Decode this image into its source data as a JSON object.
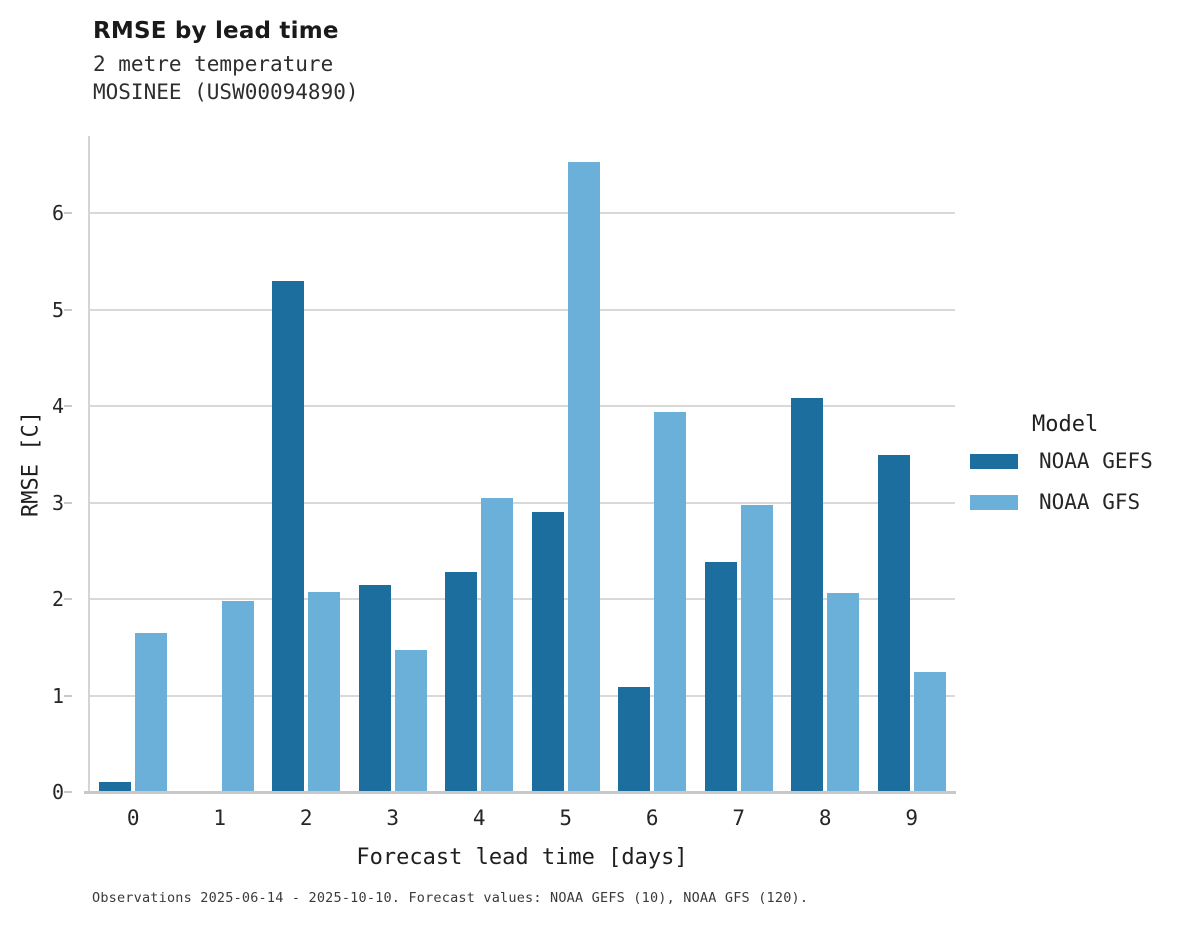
{
  "header": {
    "title": "RMSE by lead time",
    "subtitle_line1": "2 metre temperature",
    "subtitle_line2": "MOSINEE (USW00094890)"
  },
  "axes": {
    "x_title": "Forecast lead time [days]",
    "y_title": "RMSE [C]"
  },
  "legend": {
    "title": "Model",
    "entries": [
      {
        "label": "NOAA GEFS",
        "color": "#1c6e9e"
      },
      {
        "label": "NOAA GFS",
        "color": "#6ab0d8"
      }
    ]
  },
  "footer": {
    "note": "Observations 2025-06-14 - 2025-10-10. Forecast values: NOAA GEFS (10), NOAA GFS (120)."
  },
  "colors": {
    "gefs_blue": "#1c6e9e",
    "gfs_blue": "#6ab0d8",
    "gridline": "#d9d9d9",
    "axis_line": "#c8c8c8"
  },
  "chart_data": {
    "type": "bar",
    "title": "RMSE by lead time",
    "subtitle": [
      "2 metre temperature",
      "MOSINEE (USW00094890)"
    ],
    "xlabel": "Forecast lead time [days]",
    "ylabel": "RMSE [C]",
    "categories": [
      "0",
      "1",
      "2",
      "3",
      "4",
      "5",
      "6",
      "7",
      "8",
      "9"
    ],
    "series": [
      {
        "name": "NOAA GEFS",
        "color": "#1c6e9e",
        "values": [
          0.1,
          null,
          5.3,
          2.15,
          2.28,
          2.9,
          1.09,
          2.38,
          4.08,
          3.49
        ]
      },
      {
        "name": "NOAA GFS",
        "color": "#6ab0d8",
        "values": [
          1.65,
          1.98,
          2.07,
          1.47,
          3.05,
          6.53,
          3.94,
          2.98,
          2.06,
          1.24
        ]
      }
    ],
    "ylim": [
      0,
      6.8
    ],
    "yticks": [
      0,
      1,
      2,
      3,
      4,
      5,
      6
    ],
    "grid": true,
    "legend_position": "right",
    "legend_title": "Model"
  }
}
